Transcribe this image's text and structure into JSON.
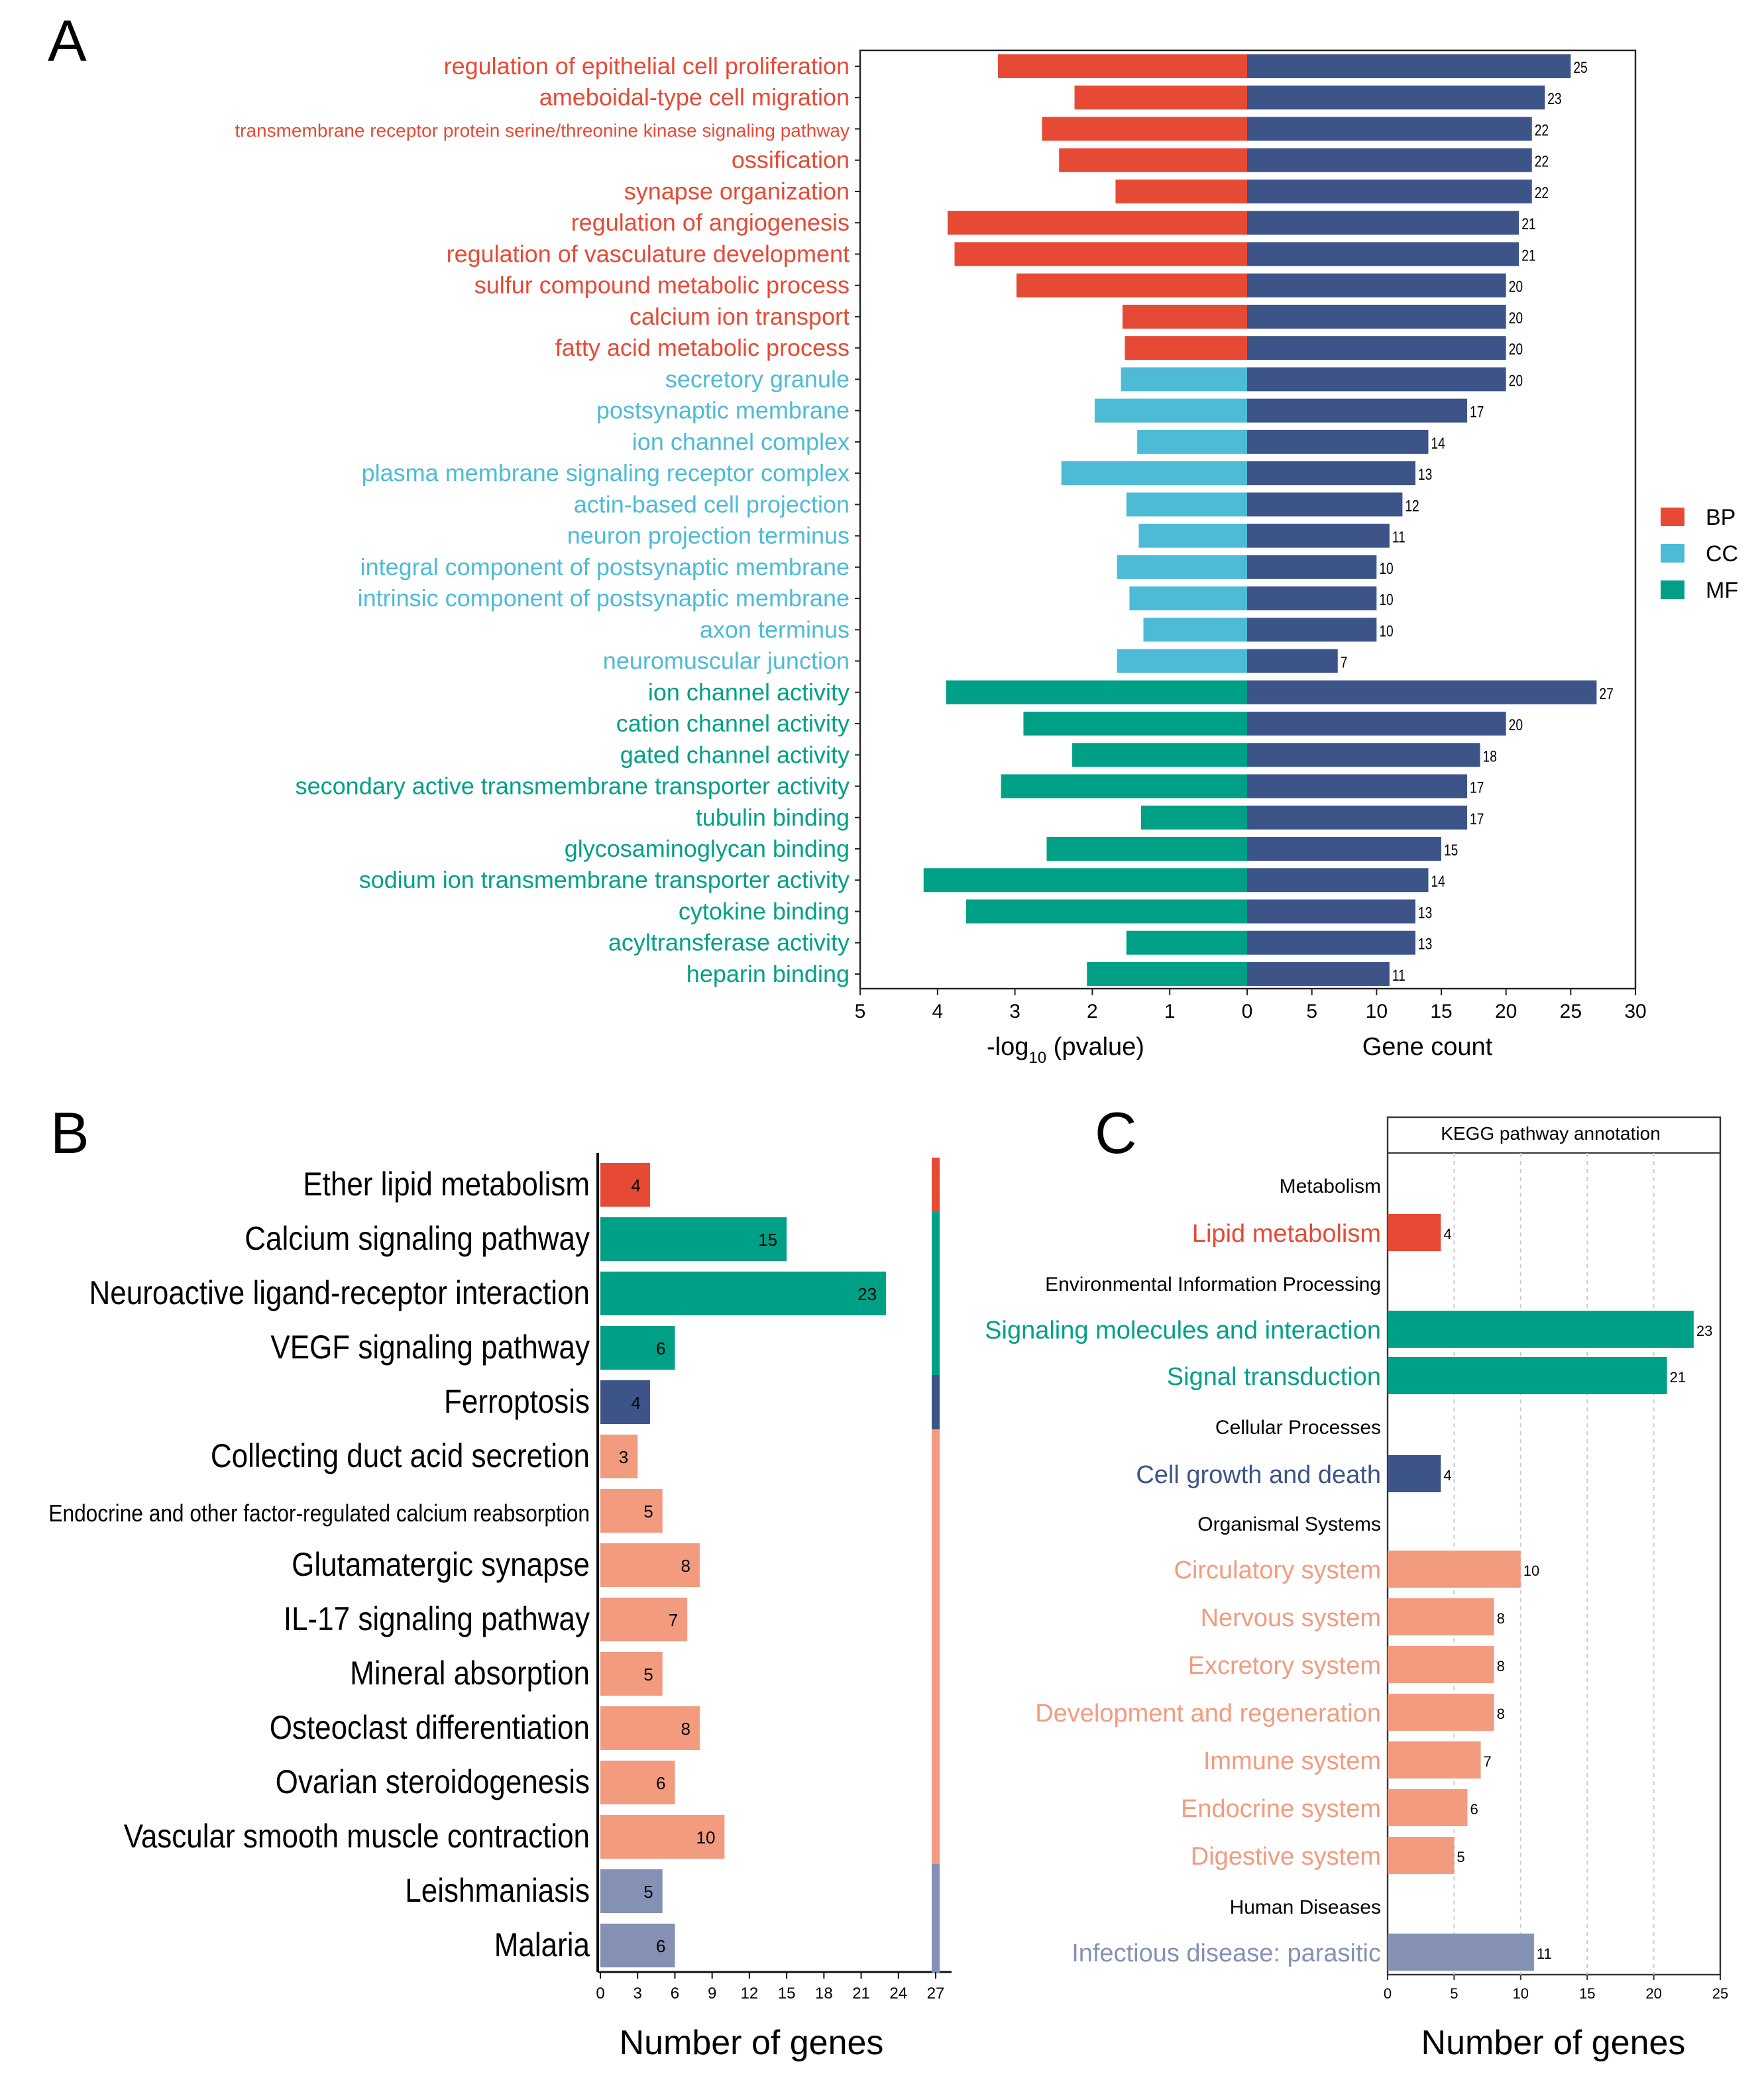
{
  "colors": {
    "BP": "#E64A35",
    "CC": "#4DBBD5",
    "MF": "#00A087",
    "count": "#3C5488",
    "Cellular": "#3C5488",
    "Organismal": "#F39B7F",
    "Human": "#8491B4"
  },
  "chart_data": [
    {
      "panel": "A",
      "type": "bar",
      "orientation": "horizontal-diverging",
      "categories": [
        "regulation of epithelial cell proliferation",
        "ameboidal-type cell migration",
        "transmembrane receptor protein serine/threonine kinase signaling pathway",
        "ossification",
        "synapse organization",
        "regulation of angiogenesis",
        "regulation of vasculature development",
        "sulfur compound metabolic process",
        "calcium ion transport",
        "fatty acid metabolic process",
        "secretory granule",
        "postsynaptic membrane",
        "ion channel complex",
        "plasma membrane signaling receptor complex",
        "actin-based cell projection",
        "neuron projection terminus",
        "integral component of postsynaptic membrane",
        "intrinsic component of postsynaptic membrane",
        "axon terminus",
        "neuromuscular junction",
        "ion channel activity",
        "cation channel activity",
        "gated channel activity",
        "secondary active transmembrane transporter activity",
        "tubulin binding",
        "glycosaminoglycan binding",
        "sodium ion transmembrane transporter activity",
        "cytokine binding",
        "acyltransferase activity",
        "heparin binding"
      ],
      "groups": [
        "BP",
        "BP",
        "BP",
        "BP",
        "BP",
        "BP",
        "BP",
        "BP",
        "BP",
        "BP",
        "CC",
        "CC",
        "CC",
        "CC",
        "CC",
        "CC",
        "CC",
        "CC",
        "CC",
        "CC",
        "MF",
        "MF",
        "MF",
        "MF",
        "MF",
        "MF",
        "MF",
        "MF",
        "MF",
        "MF"
      ],
      "series": [
        {
          "name": "-log10 (pvalue)",
          "values": [
            3.22,
            2.23,
            2.65,
            2.43,
            1.7,
            3.87,
            3.78,
            2.98,
            1.61,
            1.58,
            1.63,
            1.97,
            1.42,
            2.4,
            1.56,
            1.4,
            1.68,
            1.52,
            1.34,
            1.68,
            3.89,
            2.89,
            2.26,
            3.18,
            1.37,
            2.59,
            4.18,
            3.63,
            1.56,
            2.07
          ]
        },
        {
          "name": "Gene count",
          "values": [
            25,
            23,
            22,
            22,
            22,
            21,
            21,
            20,
            20,
            20,
            20,
            17,
            14,
            13,
            12,
            11,
            10,
            10,
            10,
            7,
            27,
            20,
            18,
            17,
            17,
            15,
            14,
            13,
            13,
            11
          ]
        }
      ],
      "xlim_left": [
        5,
        0
      ],
      "xticks_left": [
        "5",
        "4",
        "3",
        "2",
        "1",
        "0"
      ],
      "xlim_right": [
        0,
        30
      ],
      "xticks_right": [
        "0",
        "5",
        "10",
        "15",
        "20",
        "25",
        "30"
      ],
      "xlabel_left": {
        "prefix": "-log",
        "sub": "10",
        "suffix": " (pvalue)"
      },
      "xlabel_right": "Gene count",
      "legend": {
        "placement": "right",
        "items": [
          "BP",
          "CC",
          "MF"
        ]
      }
    },
    {
      "panel": "B",
      "type": "bar",
      "orientation": "horizontal",
      "categories": [
        "Ether lipid metabolism",
        "Calcium signaling pathway",
        "Neuroactive ligand-receptor interaction",
        "VEGF signaling pathway",
        "Ferroptosis",
        "Collecting duct acid secretion",
        "Endocrine and other factor-regulated calcium reabsorption",
        "Glutamatergic synapse",
        "IL-17 signaling pathway",
        "Mineral absorption",
        "Osteoclast differentiation",
        "Ovarian steroidogenesis",
        "Vascular smooth muscle contraction",
        "Leishmaniasis",
        "Malaria"
      ],
      "groups": [
        "Metabolism",
        "Env",
        "Env",
        "Env",
        "Cellular",
        "Organismal",
        "Organismal",
        "Organismal",
        "Organismal",
        "Organismal",
        "Organismal",
        "Organismal",
        "Organismal",
        "Human",
        "Human"
      ],
      "values": [
        4,
        15,
        23,
        6,
        4,
        3,
        5,
        8,
        7,
        5,
        8,
        6,
        10,
        5,
        6
      ],
      "xlim": [
        0,
        27
      ],
      "xticks": [
        "0",
        "3",
        "6",
        "9",
        "12",
        "15",
        "18",
        "21",
        "24",
        "27"
      ],
      "xlabel": "Number of genes"
    },
    {
      "panel": "C",
      "type": "bar",
      "orientation": "horizontal",
      "title": "KEGG pathway annotation",
      "rows": [
        {
          "header": "Metabolism"
        },
        {
          "label": "Lipid metabolism",
          "value": 4,
          "group": "BP"
        },
        {
          "header": "Environmental Information Processing"
        },
        {
          "label": "Signaling molecules and interaction",
          "value": 23,
          "group": "MF"
        },
        {
          "label": "Signal transduction",
          "value": 21,
          "group": "MF"
        },
        {
          "header": "Cellular Processes"
        },
        {
          "label": "Cell growth and death",
          "value": 4,
          "group": "Cellular"
        },
        {
          "header": "Organismal Systems"
        },
        {
          "label": "Circulatory system",
          "value": 10,
          "group": "Organismal"
        },
        {
          "label": "Nervous system",
          "value": 8,
          "group": "Organismal"
        },
        {
          "label": "Excretory system",
          "value": 8,
          "group": "Organismal"
        },
        {
          "label": "Development and regeneration",
          "value": 8,
          "group": "Organismal"
        },
        {
          "label": "Immune system",
          "value": 7,
          "group": "Organismal"
        },
        {
          "label": "Endocrine system",
          "value": 6,
          "group": "Organismal"
        },
        {
          "label": "Digestive system",
          "value": 5,
          "group": "Organismal"
        },
        {
          "header": "Human Diseases"
        },
        {
          "label": "Infectious disease: parasitic",
          "value": 11,
          "group": "Human"
        }
      ],
      "xlim": [
        0,
        25
      ],
      "xticks": [
        "0",
        "5",
        "10",
        "15",
        "20",
        "25"
      ],
      "grid": true,
      "xlabel": "Number of genes"
    }
  ],
  "panel_letters": [
    "A",
    "B",
    "C"
  ]
}
